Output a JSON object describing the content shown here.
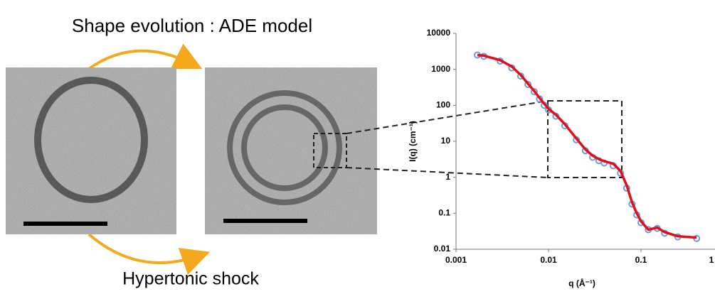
{
  "top_label": "Shape evolution : ADE model",
  "bottom_label": "Hypertonic shock",
  "chart_data": {
    "type": "line",
    "xlabel": "q (Å⁻¹)",
    "ylabel": "I(q) (cm⁻¹)",
    "log_x": true,
    "log_y": true,
    "xlim": [
      0.001,
      1
    ],
    "xticks": [
      0.001,
      0.01,
      0.1,
      1
    ],
    "ylim": [
      0.01,
      10000
    ],
    "yticks": [
      0.01,
      0.1,
      1,
      10,
      100,
      1000,
      10000
    ],
    "x": [
      0.0017,
      0.002,
      0.003,
      0.004,
      0.005,
      0.006,
      0.007,
      0.008,
      0.009,
      0.01,
      0.012,
      0.015,
      0.02,
      0.025,
      0.03,
      0.035,
      0.04,
      0.05,
      0.06,
      0.07,
      0.08,
      0.09,
      0.1,
      0.12,
      0.15,
      0.18,
      0.25,
      0.4
    ],
    "series": [
      {
        "style": "markers",
        "color": "#6d9bd4",
        "values": [
          2500,
          2300,
          1700,
          1100,
          650,
          380,
          240,
          150,
          100,
          75,
          50,
          27,
          11,
          5.5,
          3.6,
          2.9,
          2.5,
          2.1,
          1.3,
          0.5,
          0.18,
          0.09,
          0.055,
          0.035,
          0.038,
          0.028,
          0.022,
          0.02
        ]
      },
      {
        "style": "line",
        "color": "#e0101a",
        "values": [
          2500,
          2400,
          1800,
          1200,
          700,
          400,
          250,
          160,
          110,
          80,
          55,
          30,
          12,
          6,
          4,
          3.2,
          2.8,
          2.4,
          1.5,
          0.6,
          0.2,
          0.1,
          0.06,
          0.035,
          0.04,
          0.03,
          0.023,
          0.021
        ]
      }
    ]
  }
}
